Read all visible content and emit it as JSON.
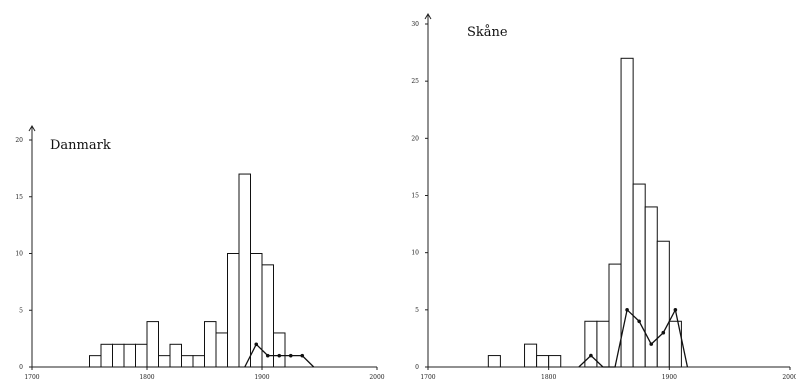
{
  "chart_data": [
    {
      "type": "bar",
      "title": "Danmark",
      "xlim": [
        1700,
        2000
      ],
      "ylim": [
        0,
        20
      ],
      "xticks": [
        "1700",
        "1800",
        "1900",
        "2000"
      ],
      "yticks": [
        "0",
        "5",
        "10",
        "15",
        "20"
      ],
      "bar_width": 10,
      "bars": [
        {
          "x": 1750,
          "value": 1
        },
        {
          "x": 1760,
          "value": 2
        },
        {
          "x": 1770,
          "value": 2
        },
        {
          "x": 1780,
          "value": 2
        },
        {
          "x": 1790,
          "value": 2
        },
        {
          "x": 1800,
          "value": 4
        },
        {
          "x": 1810,
          "value": 1
        },
        {
          "x": 1820,
          "value": 2
        },
        {
          "x": 1830,
          "value": 1
        },
        {
          "x": 1840,
          "value": 1
        },
        {
          "x": 1850,
          "value": 4
        },
        {
          "x": 1860,
          "value": 3
        },
        {
          "x": 1870,
          "value": 10
        },
        {
          "x": 1880,
          "value": 17
        },
        {
          "x": 1890,
          "value": 10
        },
        {
          "x": 1900,
          "value": 9
        },
        {
          "x": 1910,
          "value": 3
        }
      ],
      "line": {
        "x": [
          1885,
          1895,
          1905,
          1915,
          1925,
          1935,
          1945
        ],
        "y": [
          0,
          2,
          1,
          1,
          1,
          1,
          0
        ],
        "markers": [
          false,
          true,
          true,
          true,
          true,
          true,
          false
        ]
      }
    },
    {
      "type": "bar",
      "title": "Skåne",
      "xlim": [
        1700,
        2000
      ],
      "ylim": [
        0,
        30
      ],
      "xticks": [
        "1700",
        "1800",
        "1900",
        "2000"
      ],
      "yticks": [
        "0",
        "5",
        "10",
        "15",
        "20",
        "25",
        "30"
      ],
      "bar_width": 10,
      "bars": [
        {
          "x": 1750,
          "value": 1
        },
        {
          "x": 1780,
          "value": 2
        },
        {
          "x": 1790,
          "value": 1
        },
        {
          "x": 1800,
          "value": 1
        },
        {
          "x": 1830,
          "value": 4
        },
        {
          "x": 1840,
          "value": 4
        },
        {
          "x": 1850,
          "value": 9
        },
        {
          "x": 1860,
          "value": 27
        },
        {
          "x": 1870,
          "value": 16
        },
        {
          "x": 1880,
          "value": 14
        },
        {
          "x": 1890,
          "value": 11
        },
        {
          "x": 1900,
          "value": 4
        }
      ],
      "line": {
        "x": [
          1825,
          1835,
          1845,
          1855,
          1865,
          1875,
          1885,
          1895,
          1905,
          1915
        ],
        "y": [
          0,
          1,
          0,
          0,
          5,
          4,
          2,
          3,
          5,
          0
        ],
        "markers": [
          false,
          true,
          false,
          false,
          true,
          true,
          true,
          true,
          true,
          false
        ]
      }
    }
  ]
}
